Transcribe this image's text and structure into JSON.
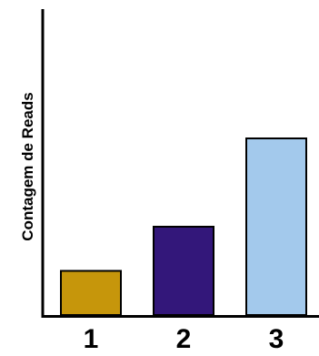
{
  "chart_data": {
    "type": "bar",
    "title": "",
    "xlabel": "",
    "ylabel": "Contagem de Reads",
    "categories": [
      "1",
      "2",
      "3"
    ],
    "values": [
      1,
      2,
      4
    ],
    "ylim": [
      0,
      6.7
    ],
    "grid": false,
    "legend": "none",
    "colors": [
      "#C6960B",
      "#33177A",
      "#A3C9EC"
    ],
    "edge_color": "#000000"
  }
}
